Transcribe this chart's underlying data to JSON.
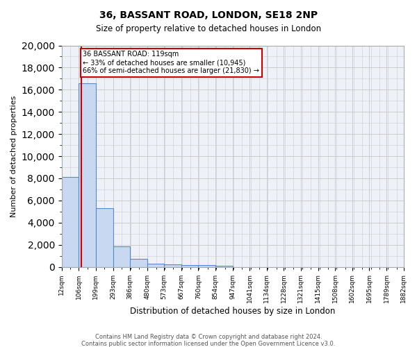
{
  "title_line1": "36, BASSANT ROAD, LONDON, SE18 2NP",
  "title_line2": "Size of property relative to detached houses in London",
  "xlabel": "Distribution of detached houses by size in London",
  "ylabel": "Number of detached properties",
  "bin_labels": [
    "12sqm",
    "106sqm",
    "199sqm",
    "293sqm",
    "386sqm",
    "480sqm",
    "573sqm",
    "667sqm",
    "760sqm",
    "854sqm",
    "947sqm",
    "1041sqm",
    "1134sqm",
    "1228sqm",
    "1321sqm",
    "1415sqm",
    "1508sqm",
    "1602sqm",
    "1695sqm",
    "1789sqm",
    "1882sqm"
  ],
  "bin_edges": [
    12,
    106,
    199,
    293,
    386,
    480,
    573,
    667,
    760,
    854,
    947,
    1041,
    1134,
    1228,
    1321,
    1415,
    1508,
    1602,
    1695,
    1789,
    1882
  ],
  "bar_heights": [
    8100,
    16600,
    5300,
    1850,
    700,
    300,
    220,
    180,
    160,
    130,
    0,
    0,
    0,
    0,
    0,
    0,
    0,
    0,
    0,
    0
  ],
  "property_sqm": 119,
  "property_line_x": 119,
  "annotation_text": "36 BASSANT ROAD: 119sqm\n← 33% of detached houses are smaller (10,945)\n66% of semi-detached houses are larger (21,830) →",
  "annotation_box_color": "#ffffff",
  "annotation_box_edgecolor": "#cc0000",
  "bar_fill_color": "#c8d8f0",
  "bar_edge_color": "#5588cc",
  "vline_color": "#cc0000",
  "grid_color": "#cccccc",
  "background_color": "#eef2f8",
  "ylim": [
    0,
    20000
  ],
  "yticks": [
    0,
    2000,
    4000,
    6000,
    8000,
    10000,
    12000,
    14000,
    16000,
    18000,
    20000
  ],
  "footer_line1": "Contains HM Land Registry data © Crown copyright and database right 2024.",
  "footer_line2": "Contains public sector information licensed under the Open Government Licence v3.0."
}
